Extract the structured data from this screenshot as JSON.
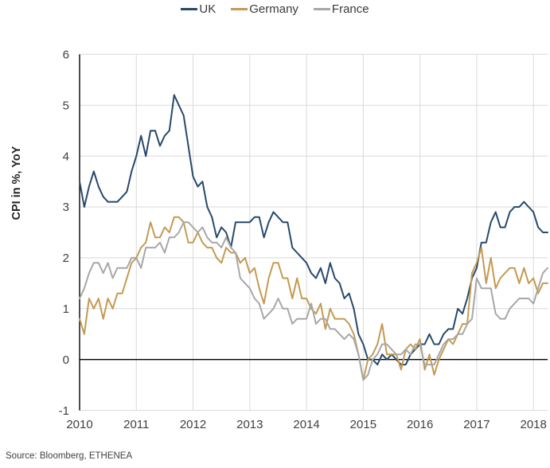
{
  "source": "Source: Bloomberg, ETHENEA",
  "chart_data": {
    "type": "line",
    "title": "",
    "xlabel": "",
    "ylabel": "CPI in %, YoY",
    "x_unit": "monthly",
    "x_start": "2010-01",
    "x_end": "2018-04",
    "x_tick_labels": [
      "2010",
      "2011",
      "2012",
      "2013",
      "2014",
      "2015",
      "2016",
      "2017",
      "2018"
    ],
    "ylim": [
      -1,
      6
    ],
    "ytick_step": 1,
    "grid": true,
    "legend_position": "top-center",
    "zero_line": true,
    "colors": {
      "uk": "#27496b",
      "germany": "#c49a52",
      "france": "#a7a7a7",
      "gridline": "#d9d9d9",
      "axis": "#000000",
      "text": "#3f3f3f"
    },
    "series": [
      {
        "name": "UK",
        "color": "#27496b",
        "values": [
          3.5,
          3.0,
          3.4,
          3.7,
          3.4,
          3.2,
          3.1,
          3.1,
          3.1,
          3.2,
          3.3,
          3.7,
          4.0,
          4.4,
          4.0,
          4.5,
          4.5,
          4.2,
          4.4,
          4.5,
          5.2,
          5.0,
          4.8,
          4.2,
          3.6,
          3.4,
          3.5,
          3.0,
          2.8,
          2.4,
          2.6,
          2.5,
          2.2,
          2.7,
          2.7,
          2.7,
          2.7,
          2.8,
          2.8,
          2.4,
          2.7,
          2.9,
          2.8,
          2.7,
          2.7,
          2.2,
          2.1,
          2.0,
          1.9,
          1.7,
          1.6,
          1.8,
          1.5,
          1.9,
          1.6,
          1.5,
          1.2,
          1.3,
          1.0,
          0.5,
          0.3,
          0.0,
          0.0,
          -0.1,
          0.1,
          0.0,
          0.1,
          0.0,
          -0.1,
          -0.1,
          0.1,
          0.2,
          0.3,
          0.3,
          0.5,
          0.3,
          0.3,
          0.5,
          0.6,
          0.6,
          1.0,
          0.9,
          1.2,
          1.6,
          1.8,
          2.3,
          2.3,
          2.7,
          2.9,
          2.6,
          2.6,
          2.9,
          3.0,
          3.0,
          3.1,
          3.0,
          2.9,
          2.6,
          2.5,
          2.5
        ]
      },
      {
        "name": "Germany",
        "color": "#c49a52",
        "values": [
          0.8,
          0.5,
          1.2,
          1.0,
          1.2,
          0.8,
          1.2,
          1.0,
          1.3,
          1.3,
          1.6,
          1.9,
          2.0,
          2.2,
          2.3,
          2.7,
          2.4,
          2.4,
          2.6,
          2.5,
          2.8,
          2.8,
          2.7,
          2.3,
          2.3,
          2.5,
          2.3,
          2.2,
          2.2,
          2.0,
          1.9,
          2.2,
          2.1,
          2.1,
          1.9,
          2.0,
          1.7,
          1.8,
          1.4,
          1.1,
          1.6,
          1.9,
          1.9,
          1.6,
          1.6,
          1.2,
          1.6,
          1.2,
          1.2,
          1.0,
          0.9,
          1.1,
          0.6,
          1.0,
          0.8,
          0.8,
          0.8,
          0.7,
          0.5,
          0.1,
          -0.4,
          0.0,
          0.1,
          0.3,
          0.7,
          0.1,
          0.1,
          0.1,
          -0.2,
          0.2,
          0.3,
          0.2,
          0.4,
          -0.2,
          0.1,
          -0.3,
          0.0,
          0.2,
          0.4,
          0.3,
          0.5,
          0.7,
          0.7,
          1.7,
          1.9,
          2.2,
          1.5,
          2.0,
          1.4,
          1.6,
          1.7,
          1.8,
          1.8,
          1.5,
          1.8,
          1.5,
          1.6,
          1.3,
          1.5,
          1.5
        ]
      },
      {
        "name": "France",
        "color": "#a7a7a7",
        "values": [
          1.2,
          1.4,
          1.7,
          1.9,
          1.9,
          1.7,
          1.9,
          1.6,
          1.8,
          1.8,
          1.8,
          2.0,
          2.0,
          1.8,
          2.2,
          2.2,
          2.2,
          2.3,
          2.1,
          2.4,
          2.4,
          2.5,
          2.7,
          2.7,
          2.6,
          2.5,
          2.6,
          2.4,
          2.3,
          2.3,
          2.2,
          2.4,
          2.2,
          2.1,
          1.6,
          1.5,
          1.4,
          1.2,
          1.1,
          0.8,
          0.9,
          1.0,
          1.2,
          1.0,
          1.0,
          0.7,
          0.8,
          0.8,
          0.8,
          1.1,
          0.7,
          0.8,
          0.8,
          0.6,
          0.6,
          0.5,
          0.4,
          0.5,
          0.4,
          0.1,
          -0.4,
          -0.3,
          0.0,
          0.1,
          0.3,
          0.3,
          0.2,
          0.1,
          0.1,
          0.2,
          0.1,
          0.3,
          0.3,
          -0.1,
          -0.1,
          -0.1,
          0.1,
          0.3,
          0.4,
          0.4,
          0.5,
          0.5,
          0.7,
          0.8,
          1.6,
          1.4,
          1.4,
          1.4,
          0.9,
          0.8,
          0.8,
          1.0,
          1.1,
          1.2,
          1.2,
          1.2,
          1.1,
          1.4,
          1.7,
          1.8
        ]
      }
    ]
  }
}
